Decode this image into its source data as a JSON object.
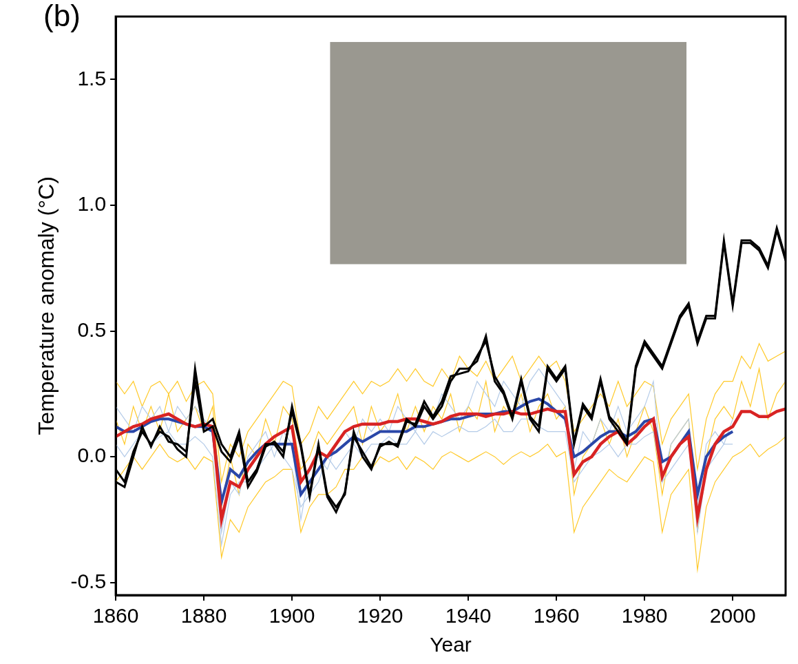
{
  "chart_data": {
    "type": "line",
    "panel_letter": "(b)",
    "x_label": "Year",
    "y_label": "Temperature anomaly (°C)",
    "xlim": [
      1860,
      2012
    ],
    "xticks": [
      1860,
      1880,
      1900,
      1920,
      1940,
      1960,
      1980,
      2000
    ],
    "ylim": [
      -0.55,
      1.75
    ],
    "yticks": [
      -0.5,
      {
        "value": 0,
        "label": "0.0"
      },
      0.5,
      {
        "value": 1,
        "label": "1.0"
      },
      1.5
    ],
    "grid": false,
    "x": [
      1860,
      1862,
      1864,
      1866,
      1868,
      1870,
      1872,
      1874,
      1876,
      1878,
      1880,
      1882,
      1884,
      1886,
      1888,
      1890,
      1892,
      1894,
      1896,
      1898,
      1900,
      1902,
      1904,
      1906,
      1908,
      1910,
      1912,
      1914,
      1916,
      1918,
      1920,
      1922,
      1924,
      1926,
      1928,
      1930,
      1932,
      1934,
      1936,
      1938,
      1940,
      1942,
      1944,
      1946,
      1948,
      1950,
      1952,
      1954,
      1956,
      1958,
      1960,
      1962,
      1964,
      1966,
      1968,
      1970,
      1972,
      1974,
      1976,
      1978,
      1980,
      1982,
      1984,
      1986,
      1988,
      1990,
      1992,
      1994,
      1996,
      1998,
      2000,
      2002,
      2004,
      2006,
      2008,
      2010,
      2012
    ],
    "series": [
      {
        "color": "#ffc928",
        "values": [
          0.3,
          0.25,
          0.3,
          0.2,
          0.28,
          0.3,
          0.25,
          0.3,
          0.22,
          0.28,
          0.3,
          0.25,
          -0.1,
          0.05,
          0.0,
          0.1,
          0.15,
          0.2,
          0.25,
          0.3,
          0.28,
          0.05,
          0.1,
          0.2,
          0.15,
          0.2,
          0.25,
          0.3,
          0.25,
          0.3,
          0.28,
          0.3,
          0.35,
          0.3,
          0.35,
          0.3,
          0.28,
          0.35,
          0.3,
          0.4,
          0.35,
          0.32,
          0.38,
          0.3,
          0.35,
          0.4,
          0.3,
          0.35,
          0.4,
          0.35,
          0.38,
          0.3,
          0.1,
          0.15,
          0.2,
          0.25,
          0.2,
          0.3,
          0.2,
          0.25,
          0.3,
          0.28,
          0.05,
          0.15,
          0.2,
          0.25,
          -0.05,
          0.15,
          0.25,
          0.3,
          0.3,
          0.4,
          0.35,
          0.45,
          0.38,
          0.4,
          0.42
        ]
      },
      {
        "color": "#ffc928",
        "values": [
          -0.1,
          -0.05,
          0.0,
          -0.05,
          0.0,
          0.05,
          0.0,
          -0.02,
          0.0,
          -0.05,
          0.0,
          -0.02,
          -0.4,
          -0.25,
          -0.3,
          -0.2,
          -0.15,
          -0.1,
          -0.08,
          -0.05,
          -0.05,
          -0.3,
          -0.2,
          -0.15,
          -0.15,
          -0.12,
          -0.05,
          -0.05,
          0.0,
          -0.05,
          0.0,
          -0.02,
          0.0,
          -0.05,
          0.0,
          -0.02,
          -0.05,
          0.0,
          0.02,
          0.0,
          -0.02,
          0.0,
          0.02,
          0.0,
          -0.03,
          0.0,
          0.02,
          0.0,
          0.02,
          0.05,
          0.0,
          0.02,
          -0.3,
          -0.2,
          -0.15,
          -0.1,
          -0.05,
          -0.08,
          -0.1,
          -0.05,
          0.0,
          -0.02,
          -0.3,
          -0.15,
          -0.1,
          -0.05,
          -0.45,
          -0.2,
          -0.1,
          -0.05,
          0.0,
          0.02,
          0.05,
          0.0,
          0.03,
          0.05,
          0.08
        ]
      },
      {
        "color": "#ffc928",
        "values": [
          0.15,
          0.05,
          0.2,
          0.1,
          0.2,
          0.1,
          0.25,
          0.1,
          0.15,
          0.2,
          0.1,
          0.2,
          -0.2,
          0.0,
          -0.15,
          0.05,
          0.0,
          0.15,
          0.05,
          0.2,
          0.15,
          -0.05,
          0.0,
          0.1,
          0.05,
          0.1,
          0.15,
          0.2,
          0.05,
          0.2,
          0.1,
          0.15,
          0.25,
          0.1,
          0.2,
          0.1,
          0.2,
          0.15,
          0.25,
          0.1,
          0.2,
          0.15,
          0.3,
          0.1,
          0.2,
          0.15,
          0.25,
          0.1,
          0.2,
          0.25,
          0.15,
          0.2,
          -0.15,
          0.0,
          0.05,
          0.15,
          0.05,
          0.15,
          0.0,
          0.1,
          0.2,
          0.1,
          -0.15,
          0.05,
          0.1,
          0.15,
          -0.3,
          0.0,
          0.15,
          0.2,
          0.15,
          0.3,
          0.2,
          0.35,
          0.15,
          0.25,
          0.3
        ]
      },
      {
        "color": "#b4cbe8",
        "values": [
          0.2,
          0.15,
          0.1,
          0.2,
          0.15,
          0.2,
          0.1,
          0.2,
          0.15,
          0.2,
          0.15,
          0.1,
          -0.3,
          -0.1,
          -0.15,
          0.0,
          0.05,
          0.1,
          0.0,
          0.1,
          0.05,
          -0.25,
          -0.05,
          0.0,
          -0.05,
          0.05,
          0.1,
          0.05,
          0.15,
          0.1,
          0.15,
          0.1,
          0.2,
          0.15,
          0.1,
          0.2,
          0.15,
          0.25,
          0.2,
          0.15,
          0.2,
          0.3,
          0.25,
          0.2,
          0.3,
          0.25,
          0.2,
          0.3,
          0.35,
          0.3,
          0.25,
          0.2,
          -0.05,
          0.1,
          0.05,
          0.15,
          0.1,
          0.2,
          0.1,
          0.15,
          0.2,
          0.3,
          -0.1,
          0.05,
          0.1,
          0.15,
          -0.2,
          0.05,
          0.1,
          0.05,
          0.15,
          null,
          null,
          null,
          null,
          null,
          null
        ]
      },
      {
        "color": "#b4cbe8",
        "values": [
          0.05,
          0.0,
          0.05,
          0.1,
          0.05,
          0.08,
          0.1,
          0.05,
          0.05,
          0.08,
          0.05,
          0.0,
          -0.35,
          -0.15,
          -0.1,
          -0.1,
          -0.05,
          0.0,
          0.05,
          0.0,
          -0.05,
          -0.2,
          -0.15,
          -0.1,
          0.0,
          -0.05,
          0.0,
          0.05,
          0.0,
          0.05,
          0.05,
          0.08,
          0.05,
          0.05,
          0.1,
          0.05,
          0.1,
          0.08,
          0.1,
          0.12,
          0.1,
          0.1,
          0.12,
          0.15,
          0.1,
          0.1,
          0.15,
          0.15,
          0.12,
          0.1,
          0.1,
          0.1,
          -0.1,
          -0.05,
          0.0,
          0.02,
          0.05,
          0.0,
          0.05,
          0.05,
          0.08,
          0.1,
          -0.1,
          -0.05,
          0.0,
          0.05,
          -0.3,
          -0.05,
          0.0,
          0.05,
          0.05,
          null,
          null,
          null,
          null,
          null,
          null
        ]
      },
      {
        "color": "#2a47a8",
        "values": [
          0.12,
          0.1,
          0.1,
          0.12,
          0.14,
          0.15,
          0.15,
          0.14,
          0.13,
          0.12,
          0.12,
          0.1,
          -0.18,
          -0.05,
          -0.08,
          -0.02,
          0.02,
          0.05,
          0.05,
          0.05,
          0.05,
          -0.15,
          -0.1,
          -0.05,
          0.0,
          0.02,
          0.05,
          0.08,
          0.06,
          0.08,
          0.1,
          0.1,
          0.1,
          0.1,
          0.12,
          0.12,
          0.13,
          0.14,
          0.15,
          0.15,
          0.16,
          0.17,
          0.17,
          0.17,
          0.18,
          0.18,
          0.2,
          0.22,
          0.23,
          0.21,
          0.18,
          0.15,
          0.0,
          0.02,
          0.05,
          0.08,
          0.1,
          0.1,
          0.08,
          0.1,
          0.14,
          0.15,
          -0.02,
          0.0,
          0.05,
          0.1,
          -0.15,
          0.0,
          0.05,
          0.08,
          0.1,
          null,
          null,
          null,
          null,
          null,
          null
        ]
      },
      {
        "color": "#d82323",
        "values": [
          0.08,
          0.1,
          0.12,
          0.13,
          0.15,
          0.16,
          0.17,
          0.15,
          0.13,
          0.12,
          0.13,
          0.12,
          -0.25,
          -0.1,
          -0.12,
          -0.05,
          0.0,
          0.05,
          0.08,
          0.1,
          0.12,
          -0.1,
          -0.05,
          0.02,
          0.0,
          0.05,
          0.1,
          0.12,
          0.13,
          0.13,
          0.13,
          0.14,
          0.14,
          0.15,
          0.15,
          0.14,
          0.13,
          0.14,
          0.16,
          0.17,
          0.17,
          0.17,
          0.16,
          0.17,
          0.17,
          0.18,
          0.17,
          0.17,
          0.18,
          0.19,
          0.18,
          0.18,
          -0.07,
          -0.02,
          0.0,
          0.05,
          0.08,
          0.1,
          0.05,
          0.08,
          0.12,
          0.15,
          -0.08,
          0.0,
          0.05,
          0.08,
          -0.24,
          -0.05,
          0.05,
          0.1,
          0.12,
          0.18,
          0.18,
          0.16,
          0.16,
          0.18,
          0.19
        ]
      },
      {
        "color": "#000000",
        "values": [
          -0.05,
          -0.1,
          0.02,
          0.1,
          0.05,
          0.1,
          0.08,
          0.03,
          0.0,
          0.35,
          0.12,
          0.15,
          0.05,
          0.0,
          0.1,
          -0.1,
          -0.05,
          0.05,
          0.05,
          0.0,
          0.2,
          0.05,
          -0.15,
          0.05,
          -0.15,
          -0.2,
          -0.15,
          0.1,
          0.0,
          -0.05,
          0.05,
          0.05,
          0.05,
          0.15,
          0.12,
          0.2,
          0.15,
          0.2,
          0.3,
          0.35,
          0.35,
          0.38,
          0.48,
          0.3,
          0.25,
          0.15,
          0.3,
          0.15,
          0.1,
          0.35,
          0.3,
          0.35,
          0.05,
          0.2,
          0.15,
          0.3,
          0.15,
          0.1,
          0.05,
          0.35,
          0.45,
          0.4,
          0.35,
          0.45,
          0.55,
          0.6,
          0.45,
          0.55,
          0.55,
          0.85,
          0.6,
          0.85,
          0.85,
          0.82,
          0.75,
          0.9,
          0.78
        ]
      },
      {
        "color": "#000000",
        "values": [
          -0.1,
          -0.12,
          0.0,
          0.12,
          0.04,
          0.12,
          0.06,
          0.05,
          0.02,
          0.3,
          0.1,
          0.12,
          0.02,
          -0.02,
          0.08,
          -0.12,
          -0.06,
          0.04,
          0.06,
          0.02,
          0.18,
          0.04,
          -0.16,
          0.04,
          -0.16,
          -0.22,
          -0.14,
          0.08,
          0.02,
          -0.04,
          0.04,
          0.06,
          0.04,
          0.14,
          0.13,
          0.22,
          0.16,
          0.22,
          0.32,
          0.33,
          0.34,
          0.4,
          0.46,
          0.32,
          0.26,
          0.16,
          0.31,
          0.16,
          0.12,
          0.36,
          0.31,
          0.36,
          0.06,
          0.21,
          0.16,
          0.31,
          0.16,
          0.12,
          0.06,
          0.36,
          0.46,
          0.41,
          0.36,
          0.46,
          0.56,
          0.61,
          0.46,
          0.56,
          0.56,
          0.86,
          0.61,
          0.86,
          0.86,
          0.83,
          0.76,
          0.91,
          0.79
        ]
      }
    ]
  }
}
